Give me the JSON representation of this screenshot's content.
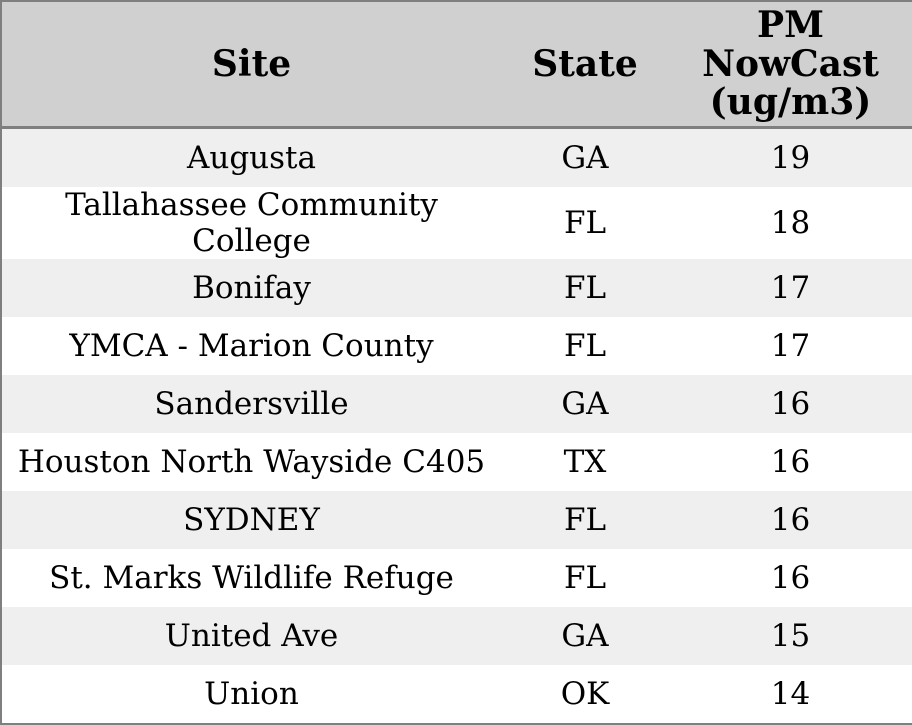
{
  "table": {
    "columns": [
      {
        "key": "site",
        "label": "Site"
      },
      {
        "key": "state",
        "label": "State"
      },
      {
        "key": "pm_nowcast",
        "label": "PM\nNowCast\n(ug/m3)"
      }
    ],
    "rows": [
      {
        "site": "Augusta",
        "state": "GA",
        "pm_nowcast": "19"
      },
      {
        "site": "Tallahassee Community College",
        "state": "FL",
        "pm_nowcast": "18"
      },
      {
        "site": "Bonifay",
        "state": "FL",
        "pm_nowcast": "17"
      },
      {
        "site": "YMCA - Marion County",
        "state": "FL",
        "pm_nowcast": "17"
      },
      {
        "site": "Sandersville",
        "state": "GA",
        "pm_nowcast": "16"
      },
      {
        "site": "Houston North Wayside C405",
        "state": "TX",
        "pm_nowcast": "16"
      },
      {
        "site": "SYDNEY",
        "state": "FL",
        "pm_nowcast": "16"
      },
      {
        "site": "St. Marks Wildlife Refuge",
        "state": "FL",
        "pm_nowcast": "16"
      },
      {
        "site": "United Ave",
        "state": "GA",
        "pm_nowcast": "15"
      },
      {
        "site": "Union",
        "state": "OK",
        "pm_nowcast": "14"
      }
    ]
  },
  "colors": {
    "header_bg": "#d0d0d0",
    "stripe_row_bg": "#efefef",
    "plain_row_bg": "#ffffff",
    "border": "#7f7f7f",
    "text": "#000000"
  },
  "chart_data": {
    "type": "table",
    "title": "",
    "columns": [
      "Site",
      "State",
      "PM NowCast (ug/m3)"
    ],
    "rows": [
      [
        "Augusta",
        "GA",
        19
      ],
      [
        "Tallahassee Community College",
        "FL",
        18
      ],
      [
        "Bonifay",
        "FL",
        17
      ],
      [
        "YMCA - Marion County",
        "FL",
        17
      ],
      [
        "Sandersville",
        "GA",
        16
      ],
      [
        "Houston North Wayside C405",
        "TX",
        16
      ],
      [
        "SYDNEY",
        "FL",
        16
      ],
      [
        "St. Marks Wildlife Refuge",
        "FL",
        16
      ],
      [
        "United Ave",
        "GA",
        15
      ],
      [
        "Union",
        "OK",
        14
      ]
    ],
    "layout_hints": {
      "striped_rows": true,
      "header_background": "#d0d0d0",
      "stripe_background": "#efefef",
      "text_align": "center"
    }
  }
}
